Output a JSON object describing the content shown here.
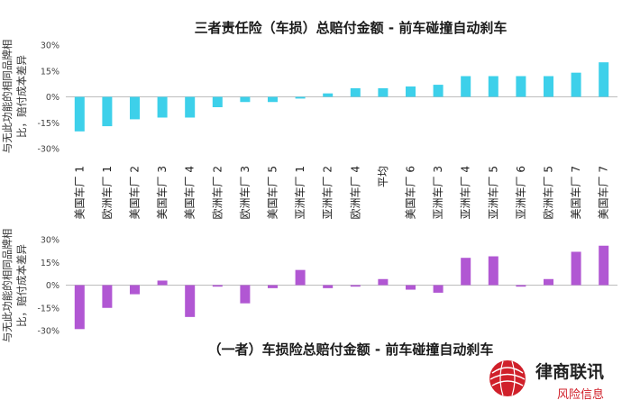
{
  "brand": {
    "name": "律商联讯",
    "subtitle": "风险信息",
    "color": "#d0202a"
  },
  "chart_data": {
    "type": "bar",
    "categories": [
      "美国车厂 1",
      "欧洲车厂 1",
      "美国车厂 2",
      "美国车厂 3",
      "美国车厂 4",
      "欧洲车厂 2",
      "欧洲车厂 3",
      "美国车厂 5",
      "亚洲车厂 1",
      "亚洲车厂 2",
      "欧洲车厂 4",
      "平均",
      "美国车厂 6",
      "亚洲车厂 3",
      "亚洲车厂 4",
      "亚洲车厂 5",
      "亚洲车厂 6",
      "欧洲车厂 5",
      "美国车厂 7",
      "美国车厂 7"
    ],
    "panels": [
      {
        "title": "三者责任险（车损）总赔付金额 - 前车碰撞自动刹车",
        "ylabel": [
          "与无此功能的相同品牌相",
          "比，赔付成本差异"
        ],
        "ylim": [
          -30,
          30
        ],
        "yticks": [
          -30,
          -15,
          0,
          15,
          30
        ],
        "color": "#3dd0ea",
        "values": [
          -20,
          -17,
          -13,
          -12,
          -12,
          -6,
          -3,
          -3,
          -1,
          2,
          5,
          5,
          6,
          7,
          12,
          12,
          12,
          12,
          14,
          20
        ]
      },
      {
        "title": "（一者）车损险总赔付金额 - 前车碰撞自动刹车",
        "ylabel": [
          "与无此功能的相同品牌相",
          "比，赔付成本差异"
        ],
        "ylim": [
          -30,
          30
        ],
        "yticks": [
          -30,
          -15,
          0,
          15,
          30
        ],
        "color": "#b157d3",
        "values": [
          -29,
          -15,
          -6,
          3,
          -21,
          -1,
          -12,
          -2,
          10,
          -2,
          -1,
          4,
          -3,
          -5,
          18,
          19,
          -1,
          4,
          22,
          26
        ]
      }
    ]
  }
}
